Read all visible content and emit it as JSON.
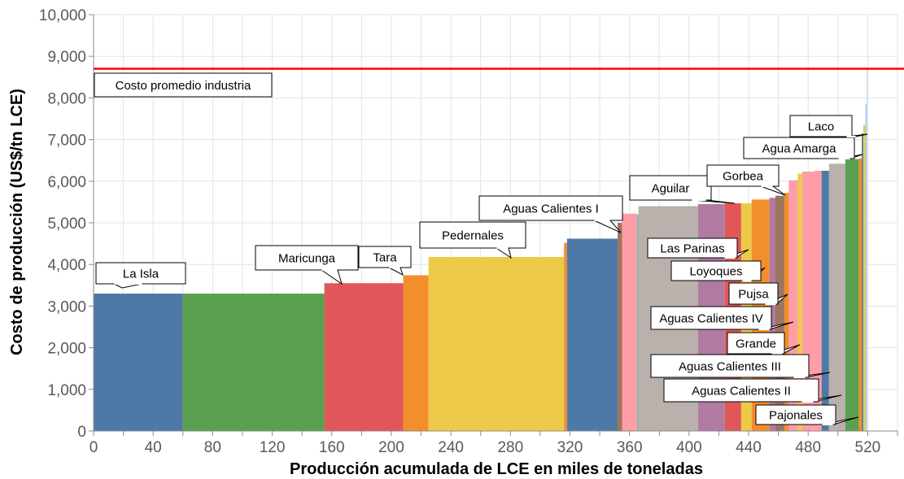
{
  "chart_data": {
    "type": "bar",
    "subtype": "cost-curve",
    "xlabel": "Producción acumulada de LCE en miles de toneladas",
    "ylabel": "Costo de producción (US$/tn LCE)",
    "xlim": [
      0,
      540
    ],
    "ylim": [
      0,
      10000
    ],
    "x_ticks": [
      "0",
      "40",
      "80",
      "120",
      "160",
      "200",
      "240",
      "280",
      "320",
      "360",
      "400",
      "440",
      "480",
      "520"
    ],
    "y_ticks": [
      "0",
      "1,000",
      "2,000",
      "3,000",
      "4,000",
      "5,000",
      "6,000",
      "7,000",
      "8,000",
      "9,000",
      "10,000"
    ],
    "grid": true,
    "average_cost": 8700,
    "average_label": "Costo promedio industria",
    "bars": [
      {
        "x0": 0,
        "x1": 60,
        "value": 3300,
        "color": "#4e79a7"
      },
      {
        "x0": 60,
        "x1": 155,
        "value": 3300,
        "color": "#59a14f"
      },
      {
        "x0": 155,
        "x1": 208,
        "value": 3550,
        "color": "#e15759"
      },
      {
        "x0": 208,
        "x1": 225,
        "value": 3740,
        "color": "#f28e2b"
      },
      {
        "x0": 225,
        "x1": 316,
        "value": 4180,
        "color": "#edc948"
      },
      {
        "x0": 316,
        "x1": 318,
        "value": 4520,
        "color": "#f28e2b"
      },
      {
        "x0": 318,
        "x1": 352,
        "value": 4620,
        "color": "#4e79a7"
      },
      {
        "x0": 352,
        "x1": 355,
        "value": 5000,
        "color": "#9c755f"
      },
      {
        "x0": 355,
        "x1": 365,
        "value": 5220,
        "color": "#ff9da7"
      },
      {
        "x0": 365,
        "x1": 366,
        "value": 5200,
        "color": "#76b7b2"
      },
      {
        "x0": 366,
        "x1": 406,
        "value": 5400,
        "color": "#bab0ac"
      },
      {
        "x0": 406,
        "x1": 424,
        "value": 5450,
        "color": "#b07aa1"
      },
      {
        "x0": 424,
        "x1": 435,
        "value": 5470,
        "color": "#e15759"
      },
      {
        "x0": 435,
        "x1": 442,
        "value": 5470,
        "color": "#edc948"
      },
      {
        "x0": 442,
        "x1": 454,
        "value": 5560,
        "color": "#f28e2b"
      },
      {
        "x0": 454,
        "x1": 458,
        "value": 5600,
        "color": "#b07aa1"
      },
      {
        "x0": 458,
        "x1": 464,
        "value": 5650,
        "color": "#9c755f"
      },
      {
        "x0": 464,
        "x1": 467,
        "value": 5720,
        "color": "#f28e2b"
      },
      {
        "x0": 467,
        "x1": 473,
        "value": 6020,
        "color": "#ff9da7"
      },
      {
        "x0": 473,
        "x1": 476,
        "value": 6180,
        "color": "#edc948"
      },
      {
        "x0": 476,
        "x1": 484,
        "value": 6230,
        "color": "#ff9da7"
      },
      {
        "x0": 484,
        "x1": 489,
        "value": 6250,
        "color": "#ff9da7"
      },
      {
        "x0": 489,
        "x1": 494,
        "value": 6250,
        "color": "#4e79a7"
      },
      {
        "x0": 494,
        "x1": 505,
        "value": 6420,
        "color": "#bab0ac"
      },
      {
        "x0": 505,
        "x1": 514,
        "value": 6530,
        "color": "#59a14f"
      },
      {
        "x0": 514,
        "x1": 516,
        "value": 6550,
        "color": "#f28e2b"
      },
      {
        "x0": 516,
        "x1": 517,
        "value": 7150,
        "color": "#4e79a7"
      },
      {
        "x0": 517,
        "x1": 518.5,
        "value": 7350,
        "color": "#edc948"
      },
      {
        "x0": 518.5,
        "x1": 519.3,
        "value": 7850,
        "color": "#a0cbe8"
      },
      {
        "x0": 519.3,
        "x1": 520,
        "value": 8700,
        "color": "#c6dbef"
      }
    ],
    "annotations": [
      "La Isla",
      "Maricunga",
      "Tara",
      "Pedernales",
      "Aguas Calientes I",
      "Aguilar",
      "Gorbea",
      "Agua Amarga",
      "Laco",
      "Las Parinas",
      "Loyoques",
      "Pujsa",
      "Aguas Calientes IV",
      "Grande",
      "Aguas Calientes III",
      "Aguas Calientes II",
      "Pajonales"
    ]
  }
}
